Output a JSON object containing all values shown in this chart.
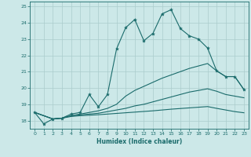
{
  "xlabel": "Humidex (Indice chaleur)",
  "bg_color": "#cce8e8",
  "grid_color": "#aacccc",
  "line_color": "#1a6b6b",
  "xlim": [
    -0.5,
    23.5
  ],
  "ylim": [
    17.5,
    25.3
  ],
  "yticks": [
    18,
    19,
    20,
    21,
    22,
    23,
    24,
    25
  ],
  "xticks": [
    0,
    1,
    2,
    3,
    4,
    5,
    6,
    7,
    8,
    9,
    10,
    11,
    12,
    13,
    14,
    15,
    16,
    17,
    18,
    19,
    20,
    21,
    22,
    23
  ],
  "line1_x": [
    0,
    1,
    2,
    3,
    4,
    5,
    6,
    7,
    8,
    9,
    10,
    11,
    12,
    13,
    14,
    15,
    16,
    17,
    18,
    19,
    20,
    21,
    22,
    23
  ],
  "line1_y": [
    18.5,
    17.8,
    18.1,
    18.15,
    18.4,
    18.5,
    19.6,
    18.85,
    19.6,
    22.4,
    23.7,
    24.2,
    22.9,
    23.35,
    24.55,
    24.8,
    23.65,
    23.2,
    23.0,
    22.45,
    21.05,
    20.7,
    20.7,
    19.9
  ],
  "line2_x": [
    0,
    2,
    3,
    4,
    5,
    6,
    7,
    8,
    9,
    10,
    11,
    12,
    13,
    14,
    15,
    16,
    17,
    18,
    19,
    20,
    21,
    22,
    23
  ],
  "line2_y": [
    18.5,
    18.1,
    18.15,
    18.3,
    18.4,
    18.5,
    18.6,
    18.75,
    19.0,
    19.5,
    19.85,
    20.1,
    20.35,
    20.6,
    20.8,
    21.0,
    21.2,
    21.35,
    21.5,
    21.05,
    20.7,
    20.7,
    19.9
  ],
  "line3_x": [
    0,
    2,
    3,
    4,
    5,
    6,
    7,
    8,
    9,
    10,
    11,
    12,
    13,
    14,
    15,
    16,
    17,
    18,
    19,
    20,
    21,
    22,
    23
  ],
  "line3_y": [
    18.5,
    18.1,
    18.15,
    18.3,
    18.35,
    18.4,
    18.45,
    18.55,
    18.65,
    18.75,
    18.9,
    19.0,
    19.15,
    19.3,
    19.45,
    19.6,
    19.75,
    19.85,
    19.95,
    19.8,
    19.6,
    19.5,
    19.4
  ],
  "line4_x": [
    0,
    2,
    3,
    4,
    5,
    6,
    7,
    8,
    9,
    10,
    11,
    12,
    13,
    14,
    15,
    16,
    17,
    18,
    19,
    20,
    21,
    22,
    23
  ],
  "line4_y": [
    18.5,
    18.1,
    18.15,
    18.25,
    18.3,
    18.33,
    18.36,
    18.4,
    18.44,
    18.48,
    18.52,
    18.56,
    18.6,
    18.65,
    18.7,
    18.74,
    18.78,
    18.82,
    18.86,
    18.75,
    18.65,
    18.55,
    18.48
  ]
}
